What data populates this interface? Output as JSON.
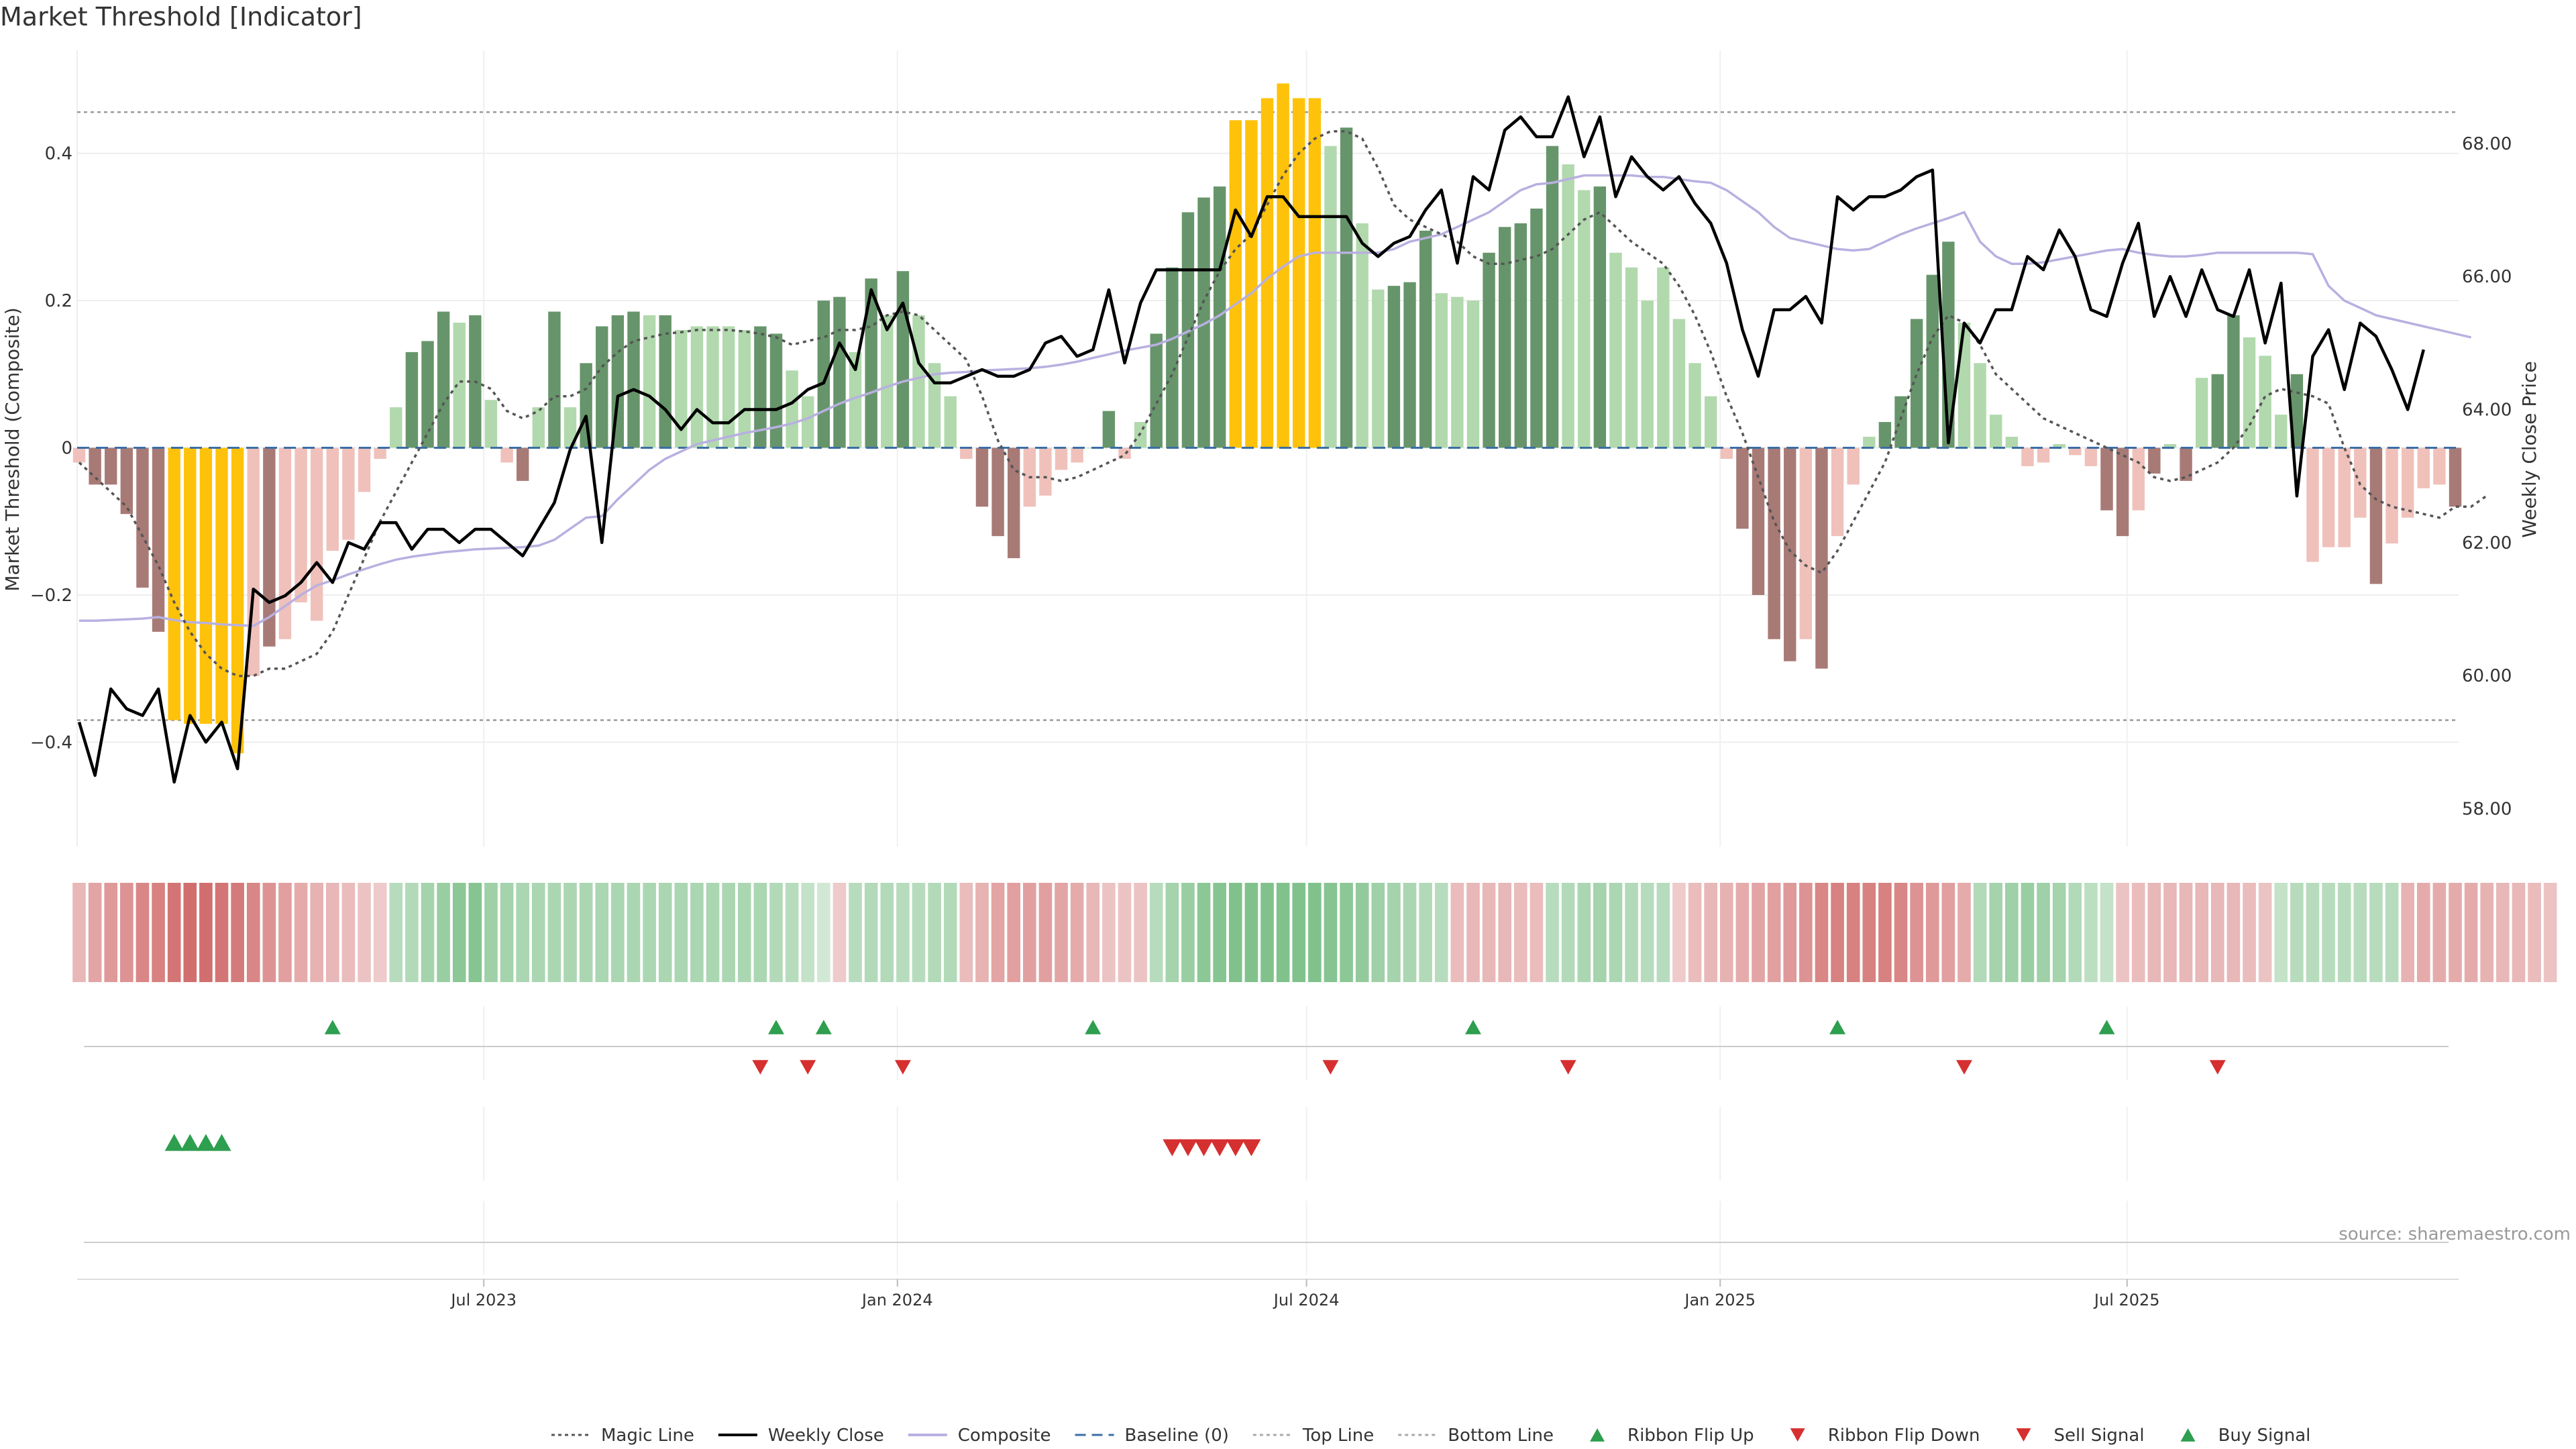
{
  "chart_data": {
    "type": "bar",
    "title": "Market Threshold [Indicator]",
    "ylabel": "Market Threshold (Composite)",
    "y2label": "Weekly Close Price",
    "source": "source: sharemaestro.com",
    "ylim": [
      -0.54,
      0.54
    ],
    "y2lim": [
      57.45,
      69.4
    ],
    "yticks": [
      -0.4,
      -0.2,
      0,
      0.2,
      0.4
    ],
    "ytick_labels": [
      "−0.4",
      "−0.2",
      "0",
      "0.2",
      "0.4"
    ],
    "y2ticks": [
      58,
      60,
      62,
      64,
      66,
      68
    ],
    "y2tick_labels": [
      "58.00",
      "60.00",
      "62.00",
      "64.00",
      "66.00",
      "68.00"
    ],
    "top_line": 0.456,
    "bottom_line": -0.37,
    "x_start": "2023-01-02",
    "x_end": "2025-11-24",
    "xticks": [
      {
        "date": "2023-07-01",
        "label": "Jul 2023"
      },
      {
        "date": "2024-01-01",
        "label": "Jan 2024"
      },
      {
        "date": "2024-07-01",
        "label": "Jul 2024"
      },
      {
        "date": "2025-01-01",
        "label": "Jan 2025"
      },
      {
        "date": "2025-07-01",
        "label": "Jul 2025"
      }
    ],
    "legend": [
      {
        "label": "Magic Line",
        "kind": "dot-line",
        "color": "#555555"
      },
      {
        "label": "Weekly Close",
        "kind": "line",
        "color": "#000000"
      },
      {
        "label": "Composite",
        "kind": "line",
        "color": "#b8b0e0"
      },
      {
        "label": "Baseline (0)",
        "kind": "dash-line",
        "color": "#3b6ea5"
      },
      {
        "label": "Top Line",
        "kind": "dot-line",
        "color": "#aaaaaa"
      },
      {
        "label": "Bottom Line",
        "kind": "dot-line",
        "color": "#aaaaaa"
      },
      {
        "label": "Ribbon Flip Up",
        "kind": "tri-up",
        "color": "#2e9e4f"
      },
      {
        "label": "Ribbon Flip Down",
        "kind": "tri-down",
        "color": "#d62f2f"
      },
      {
        "label": "Sell Signal",
        "kind": "tri-down",
        "color": "#d62f2f"
      },
      {
        "label": "Buy Signal",
        "kind": "tri-up",
        "color": "#2e9e4f"
      }
    ],
    "colors": {
      "strong_up": "#67956b",
      "weak_up": "#b1d9ad",
      "strong_down": "#a87a76",
      "weak_down": "#efc1ba",
      "extreme": "#ffc20a",
      "close": "#000000",
      "composite": "#b8b0e0",
      "magic": "#555555",
      "flip_up": "#2e9e4f",
      "flip_down": "#d62f2f"
    },
    "bars": [
      -0.02,
      -0.05,
      -0.05,
      -0.09,
      -0.19,
      -0.25,
      -0.37,
      -0.375,
      -0.375,
      -0.375,
      -0.415,
      -0.31,
      -0.27,
      -0.26,
      -0.21,
      -0.235,
      -0.14,
      -0.125,
      -0.06,
      -0.015,
      0.055,
      0.13,
      0.145,
      0.185,
      0.17,
      0.18,
      0.065,
      -0.02,
      -0.045,
      0.055,
      0.185,
      0.055,
      0.115,
      0.165,
      0.18,
      0.185,
      0.18,
      0.18,
      0.16,
      0.165,
      0.165,
      0.165,
      0.16,
      0.165,
      0.155,
      0.105,
      0.07,
      0.2,
      0.205,
      0.13,
      0.23,
      0.18,
      0.24,
      0.18,
      0.115,
      0.07,
      -0.015,
      -0.08,
      -0.12,
      -0.15,
      -0.08,
      -0.065,
      -0.03,
      -0.02,
      0,
      0.05,
      -0.015,
      0.035,
      0.155,
      0.245,
      0.32,
      0.34,
      0.355,
      0.445,
      0.445,
      0.475,
      0.495,
      0.475,
      0.475,
      0.41,
      0.435,
      0.305,
      0.215,
      0.22,
      0.225,
      0.295,
      0.21,
      0.205,
      0.2,
      0.265,
      0.3,
      0.305,
      0.325,
      0.41,
      0.385,
      0.35,
      0.355,
      0.265,
      0.245,
      0.2,
      0.245,
      0.175,
      0.115,
      0.07,
      -0.015,
      -0.11,
      -0.2,
      -0.26,
      -0.29,
      -0.26,
      -0.3,
      -0.12,
      -0.05,
      0.015,
      0.035,
      0.07,
      0.175,
      0.235,
      0.28,
      0.17,
      0.115,
      0.045,
      0.015,
      -0.025,
      -0.02,
      0.005,
      -0.01,
      -0.025,
      -0.085,
      -0.12,
      -0.085,
      -0.035,
      0.005,
      -0.045,
      0.095,
      0.1,
      0.18,
      0.15,
      0.125,
      0.045,
      0.1,
      -0.155,
      -0.135,
      -0.135,
      -0.095,
      -0.185,
      -0.13,
      -0.095,
      -0.055,
      -0.05,
      -0.08
    ],
    "bar_styles": [
      "wd",
      "sd",
      "sd",
      "sd",
      "sd",
      "sd",
      "x",
      "x",
      "x",
      "x",
      "x",
      "wd",
      "sd",
      "wd",
      "wd",
      "wd",
      "wd",
      "wd",
      "wd",
      "wd",
      "wu",
      "su",
      "su",
      "su",
      "wu",
      "su",
      "wu",
      "wd",
      "sd",
      "wu",
      "su",
      "wu",
      "su",
      "su",
      "su",
      "su",
      "wu",
      "su",
      "wu",
      "wu",
      "wu",
      "wu",
      "wu",
      "su",
      "su",
      "wu",
      "wu",
      "su",
      "su",
      "wu",
      "su",
      "wu",
      "su",
      "wu",
      "wu",
      "wu",
      "wd",
      "sd",
      "sd",
      "sd",
      "wd",
      "wd",
      "wd",
      "wd",
      "wu",
      "su",
      "wd",
      "wu",
      "su",
      "su",
      "su",
      "su",
      "su",
      "x",
      "x",
      "x",
      "x",
      "x",
      "x",
      "wu",
      "su",
      "wu",
      "wu",
      "su",
      "su",
      "su",
      "wu",
      "wu",
      "wu",
      "su",
      "su",
      "su",
      "su",
      "su",
      "wu",
      "wu",
      "su",
      "wu",
      "wu",
      "wu",
      "wu",
      "wu",
      "wu",
      "wu",
      "wd",
      "sd",
      "sd",
      "sd",
      "sd",
      "wd",
      "sd",
      "wd",
      "wd",
      "wu",
      "su",
      "su",
      "su",
      "su",
      "su",
      "wu",
      "wu",
      "wu",
      "wu",
      "wd",
      "wd",
      "wu",
      "wd",
      "wd",
      "sd",
      "sd",
      "wd",
      "sd",
      "wu",
      "sd",
      "wu",
      "su",
      "su",
      "wu",
      "wu",
      "wu",
      "su",
      "wd",
      "wd",
      "wd",
      "wd",
      "sd",
      "wd",
      "wd",
      "wd",
      "wd",
      "sd"
    ],
    "composite": [
      -0.235,
      -0.235,
      -0.234,
      -0.233,
      -0.232,
      -0.23,
      -0.234,
      -0.237,
      -0.238,
      -0.24,
      -0.241,
      -0.242,
      -0.23,
      -0.215,
      -0.2,
      -0.187,
      -0.18,
      -0.172,
      -0.165,
      -0.158,
      -0.152,
      -0.148,
      -0.145,
      -0.142,
      -0.14,
      -0.138,
      -0.137,
      -0.136,
      -0.135,
      -0.133,
      -0.125,
      -0.11,
      -0.095,
      -0.093,
      -0.07,
      -0.05,
      -0.03,
      -0.015,
      -0.005,
      0.005,
      0.01,
      0.015,
      0.02,
      0.024,
      0.028,
      0.033,
      0.04,
      0.05,
      0.06,
      0.068,
      0.075,
      0.083,
      0.09,
      0.095,
      0.1,
      0.102,
      0.103,
      0.105,
      0.106,
      0.107,
      0.108,
      0.11,
      0.113,
      0.117,
      0.122,
      0.127,
      0.132,
      0.136,
      0.14,
      0.148,
      0.158,
      0.168,
      0.18,
      0.195,
      0.21,
      0.23,
      0.246,
      0.26,
      0.265,
      0.265,
      0.265,
      0.265,
      0.265,
      0.27,
      0.28,
      0.285,
      0.29,
      0.3,
      0.31,
      0.32,
      0.335,
      0.35,
      0.358,
      0.36,
      0.365,
      0.37,
      0.37,
      0.37,
      0.37,
      0.368,
      0.368,
      0.365,
      0.362,
      0.36,
      0.35,
      0.335,
      0.32,
      0.3,
      0.285,
      0.28,
      0.275,
      0.27,
      0.268,
      0.27,
      0.28,
      0.29,
      0.298,
      0.305,
      0.312,
      0.32,
      0.28,
      0.26,
      0.25,
      0.25,
      0.252,
      0.256,
      0.26,
      0.264,
      0.268,
      0.27,
      0.265,
      0.262,
      0.26,
      0.26,
      0.262,
      0.265,
      0.265,
      0.265,
      0.265,
      0.265,
      0.265,
      0.263,
      0.22,
      0.2,
      0.19,
      0.18,
      0.175,
      0.17,
      0.165,
      0.16,
      0.155,
      0.15
    ],
    "magic": [
      -0.02,
      -0.04,
      -0.06,
      -0.08,
      -0.12,
      -0.16,
      -0.21,
      -0.25,
      -0.28,
      -0.3,
      -0.31,
      -0.31,
      -0.3,
      -0.3,
      -0.29,
      -0.28,
      -0.25,
      -0.2,
      -0.15,
      -0.1,
      -0.06,
      -0.02,
      0.02,
      0.06,
      0.09,
      0.09,
      0.08,
      0.05,
      0.04,
      0.05,
      0.07,
      0.07,
      0.08,
      0.11,
      0.13,
      0.145,
      0.15,
      0.155,
      0.157,
      0.16,
      0.16,
      0.16,
      0.158,
      0.155,
      0.15,
      0.14,
      0.145,
      0.15,
      0.16,
      0.16,
      0.165,
      0.18,
      0.185,
      0.18,
      0.16,
      0.14,
      0.12,
      0.07,
      0.01,
      -0.03,
      -0.04,
      -0.04,
      -0.045,
      -0.04,
      -0.03,
      -0.02,
      -0.01,
      0.02,
      0.06,
      0.1,
      0.15,
      0.2,
      0.24,
      0.27,
      0.29,
      0.33,
      0.37,
      0.4,
      0.42,
      0.43,
      0.43,
      0.42,
      0.38,
      0.33,
      0.31,
      0.3,
      0.29,
      0.28,
      0.26,
      0.25,
      0.25,
      0.255,
      0.26,
      0.27,
      0.29,
      0.31,
      0.32,
      0.3,
      0.28,
      0.265,
      0.25,
      0.22,
      0.18,
      0.13,
      0.07,
      0.02,
      -0.04,
      -0.1,
      -0.14,
      -0.16,
      -0.17,
      -0.14,
      -0.1,
      -0.06,
      -0.02,
      0.04,
      0.1,
      0.15,
      0.18,
      0.17,
      0.14,
      0.1,
      0.08,
      0.06,
      0.04,
      0.03,
      0.02,
      0.01,
      0.0,
      -0.01,
      -0.02,
      -0.04,
      -0.045,
      -0.04,
      -0.03,
      -0.02,
      0.0,
      0.03,
      0.07,
      0.08,
      0.075,
      0.07,
      0.06,
      0.0,
      -0.05,
      -0.07,
      -0.08,
      -0.085,
      -0.09,
      -0.095,
      -0.08,
      -0.08,
      -0.065
    ],
    "close": [
      59.3,
      58.5,
      59.8,
      59.5,
      59.4,
      59.8,
      58.4,
      59.4,
      59.0,
      59.3,
      58.6,
      61.3,
      61.1,
      61.2,
      61.4,
      61.7,
      61.4,
      62.0,
      61.9,
      62.3,
      62.3,
      61.9,
      62.2,
      62.2,
      62.0,
      62.2,
      62.2,
      62.0,
      61.8,
      62.2,
      62.6,
      63.4,
      63.9,
      62.0,
      64.2,
      64.3,
      64.2,
      64.0,
      63.7,
      64.0,
      63.8,
      63.8,
      64.0,
      64.0,
      64.0,
      64.1,
      64.3,
      64.4,
      65.0,
      64.6,
      65.8,
      65.2,
      65.6,
      64.7,
      64.4,
      64.4,
      64.5,
      64.6,
      64.5,
      64.5,
      64.6,
      65.0,
      65.1,
      64.8,
      64.9,
      65.8,
      64.7,
      65.6,
      66.1,
      66.1,
      66.1,
      66.1,
      66.1,
      67.0,
      66.6,
      67.2,
      67.2,
      66.9,
      66.9,
      66.9,
      66.9,
      66.5,
      66.3,
      66.5,
      66.6,
      67.0,
      67.3,
      66.2,
      67.5,
      67.3,
      68.2,
      68.4,
      68.1,
      68.1,
      68.7,
      67.8,
      68.4,
      67.2,
      67.8,
      67.5,
      67.3,
      67.5,
      67.1,
      66.8,
      66.2,
      65.2,
      64.5,
      65.5,
      65.5,
      65.7,
      65.3,
      67.2,
      67.0,
      67.2,
      67.2,
      67.3,
      67.5,
      67.6,
      63.5,
      65.3,
      65.0,
      65.5,
      65.5,
      66.3,
      66.1,
      66.7,
      66.3,
      65.5,
      65.4,
      66.2,
      66.8,
      65.4,
      66.0,
      65.4,
      66.1,
      65.5,
      65.4,
      66.1,
      65.0,
      65.9,
      62.7,
      64.8,
      65.2,
      64.3,
      65.3,
      65.1,
      64.6,
      64.0,
      64.9
    ],
    "ribbon": [
      -0.3,
      -0.45,
      -0.55,
      -0.6,
      -0.7,
      -0.75,
      -0.85,
      -0.9,
      -0.9,
      -0.85,
      -0.8,
      -0.7,
      -0.6,
      -0.5,
      -0.4,
      -0.35,
      -0.3,
      -0.25,
      -0.2,
      -0.15,
      0.3,
      0.35,
      0.45,
      0.55,
      0.65,
      0.7,
      0.5,
      0.45,
      0.4,
      0.4,
      0.4,
      0.4,
      0.4,
      0.4,
      0.4,
      0.4,
      0.4,
      0.4,
      0.4,
      0.4,
      0.4,
      0.4,
      0.4,
      0.4,
      0.35,
      0.3,
      0.2,
      0.1,
      -0.15,
      0.3,
      0.35,
      0.35,
      0.3,
      0.3,
      0.35,
      0.35,
      -0.25,
      -0.35,
      -0.45,
      -0.5,
      -0.5,
      -0.5,
      -0.45,
      -0.4,
      -0.3,
      -0.2,
      -0.2,
      -0.2,
      0.3,
      0.45,
      0.55,
      0.65,
      0.7,
      0.75,
      0.75,
      0.75,
      0.75,
      0.75,
      0.75,
      0.7,
      0.65,
      0.6,
      0.5,
      0.45,
      0.4,
      0.35,
      0.3,
      -0.25,
      -0.3,
      -0.3,
      -0.3,
      -0.25,
      -0.25,
      0.3,
      0.35,
      0.4,
      0.45,
      0.4,
      0.35,
      0.3,
      0.3,
      -0.15,
      -0.25,
      -0.3,
      -0.35,
      -0.4,
      -0.45,
      -0.5,
      -0.55,
      -0.6,
      -0.7,
      -0.75,
      -0.75,
      -0.75,
      -0.75,
      -0.7,
      -0.6,
      -0.55,
      -0.5,
      -0.4,
      0.35,
      0.45,
      0.5,
      0.55,
      0.5,
      0.45,
      0.35,
      0.25,
      0.2,
      -0.2,
      -0.25,
      -0.3,
      -0.3,
      -0.3,
      -0.3,
      -0.3,
      -0.3,
      -0.25,
      -0.2,
      0.2,
      0.3,
      0.3,
      0.3,
      0.3,
      0.3,
      0.3,
      0.3,
      -0.35,
      -0.4,
      -0.4,
      -0.4,
      -0.4,
      -0.35,
      -0.3,
      -0.3,
      -0.25,
      -0.2
    ],
    "ribbon_flip_up": [
      16,
      44,
      47,
      64,
      88,
      111,
      128
    ],
    "ribbon_flip_down": [
      43,
      46,
      52,
      79,
      94,
      119,
      135
    ],
    "buy_signals": [
      6,
      7,
      8,
      9
    ],
    "sell_signals": [
      69,
      70,
      71,
      72,
      73,
      74
    ]
  }
}
